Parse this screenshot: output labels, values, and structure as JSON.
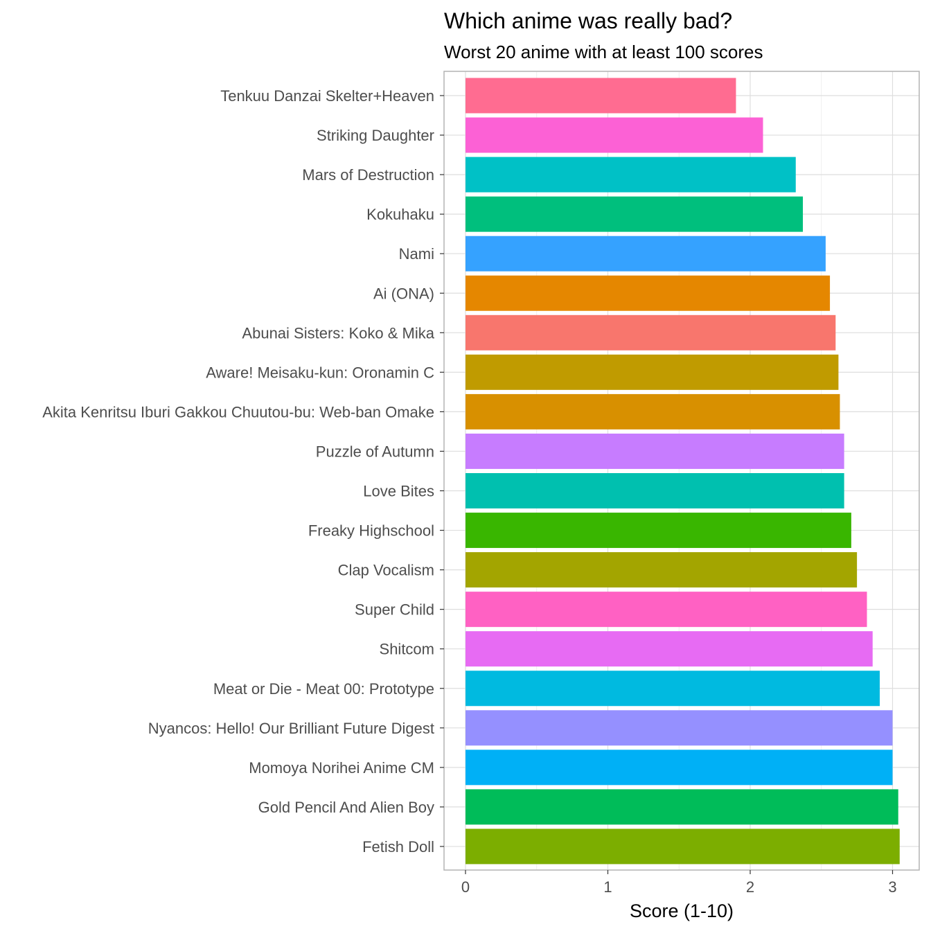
{
  "chart_data": {
    "type": "bar",
    "orientation": "horizontal",
    "title": "Which anime was really bad?",
    "subtitle": "Worst 20 anime with at least 100 scores",
    "xlabel": "Score (1-10)",
    "ylabel": "",
    "xlim": [
      -0.15,
      3.2
    ],
    "xticks": [
      0,
      1,
      2,
      3
    ],
    "grid": true,
    "legend": "none",
    "categories": [
      "Tenkuu Danzai Skelter+Heaven",
      "Striking Daughter",
      "Mars of Destruction",
      "Kokuhaku",
      "Nami",
      "Ai (ONA)",
      "Abunai Sisters: Koko & Mika",
      "Aware! Meisaku-kun: Oronamin C",
      "Akita Kenritsu Iburi Gakkou Chuutou-bu: Web-ban Omake",
      "Puzzle of Autumn",
      "Love Bites",
      "Freaky Highschool",
      "Clap Vocalism",
      "Super Child",
      "Shitcom",
      "Meat or Die - Meat 00: Prototype",
      "Nyancos: Hello! Our Brilliant Future Digest",
      "Momoya Norihei Anime CM",
      "Gold Pencil And Alien Boy",
      "Fetish Doll"
    ],
    "values": [
      1.9,
      2.09,
      2.32,
      2.37,
      2.53,
      2.56,
      2.6,
      2.62,
      2.63,
      2.66,
      2.66,
      2.71,
      2.75,
      2.82,
      2.86,
      2.91,
      3.0,
      3.0,
      3.04,
      3.05
    ],
    "colors": [
      "#FF6C91",
      "#FC61D5",
      "#00C1C6",
      "#00BF7D",
      "#35A2FF",
      "#E58700",
      "#F8766D",
      "#C09B00",
      "#D89000",
      "#C77CFF",
      "#00C0AF",
      "#39B600",
      "#A3A500",
      "#FF61C3",
      "#E76BF3",
      "#00BAE0",
      "#9590FF",
      "#00B0F6",
      "#00BC59",
      "#7CAE00"
    ]
  }
}
